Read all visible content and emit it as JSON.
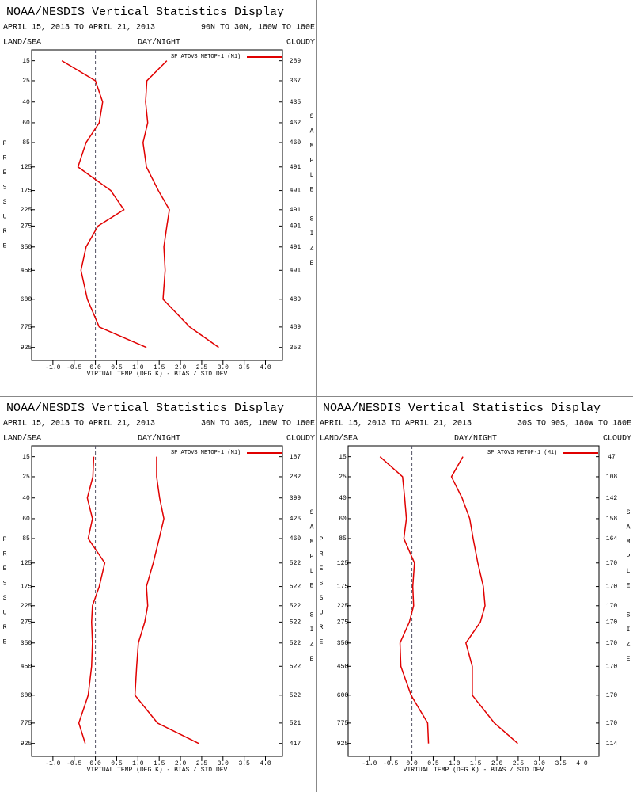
{
  "chart_data": [
    {
      "type": "line",
      "title": "NOAA/NESDIS Vertical Statistics Display",
      "subtitle": "APRIL 15, 2013 TO APRIL 21, 2013",
      "region": "90N TO 30N, 180W TO 180E",
      "land_sea": "LAND/SEA",
      "day_night": "DAY/NIGHT",
      "cloud": "CLOUDY",
      "xlabel": "VIRTUAL TEMP (DEG K) - BIAS / STD DEV",
      "ylabel": "PRESSURE",
      "y2label": "SAMPLE SIZE",
      "y": [
        15,
        25,
        40,
        60,
        85,
        125,
        175,
        225,
        275,
        350,
        450,
        600,
        775,
        925
      ],
      "ylim": [
        11,
        1030
      ],
      "sample_size": [
        289,
        367,
        435,
        462,
        460,
        491,
        491,
        491,
        491,
        491,
        491,
        489,
        489,
        352
      ],
      "xlim": [
        -1.5,
        4.4
      ],
      "xticks": [
        {
          "value": -1,
          "label": "-1.0"
        },
        {
          "value": -0.5,
          "label": "-0.5"
        },
        {
          "value": 0,
          "label": "0.0"
        },
        {
          "value": 0.5,
          "label": "0.5"
        },
        {
          "value": 1,
          "label": "1.0"
        },
        {
          "value": 1.5,
          "label": "1.5"
        },
        {
          "value": 2,
          "label": "2.0"
        },
        {
          "value": 2.5,
          "label": "2.5"
        },
        {
          "value": 3,
          "label": "3.0"
        },
        {
          "value": 3.5,
          "label": "3.5"
        },
        {
          "value": 4,
          "label": "4.0"
        }
      ],
      "series": [
        {
          "name": "SP ATOVS METOP-1 (M1)",
          "color": "#e00000",
          "values": [
            -0.79,
            0.0,
            0.17,
            0.09,
            -0.22,
            -0.41,
            0.36,
            0.67,
            0.06,
            -0.22,
            -0.34,
            -0.19,
            0.09,
            1.2
          ],
          "std_dev": [
            1.68,
            1.21,
            1.18,
            1.23,
            1.12,
            1.2,
            1.48,
            1.74,
            1.68,
            1.61,
            1.64,
            1.59,
            2.22,
            2.9
          ]
        }
      ]
    },
    {
      "type": "line",
      "title": "NOAA/NESDIS Vertical Statistics Display",
      "subtitle": "APRIL 15, 2013 TO APRIL 21, 2013",
      "region": "30N TO 30S, 180W TO 180E",
      "land_sea": "LAND/SEA",
      "day_night": "DAY/NIGHT",
      "cloud": "CLOUDY",
      "xlabel": "VIRTUAL TEMP (DEG K) - BIAS / STD DEV",
      "ylabel": "PRESSURE",
      "y2label": "SAMPLE SIZE",
      "y": [
        15,
        25,
        40,
        60,
        85,
        125,
        175,
        225,
        275,
        350,
        450,
        600,
        775,
        925
      ],
      "ylim": [
        11,
        1030
      ],
      "sample_size": [
        187,
        282,
        399,
        426,
        460,
        522,
        522,
        522,
        522,
        522,
        522,
        522,
        521,
        417
      ],
      "xlim": [
        -1.5,
        4.4
      ],
      "xticks": [
        {
          "value": -1,
          "label": "-1.0"
        },
        {
          "value": -0.5,
          "label": "-0.5"
        },
        {
          "value": 0,
          "label": "0.0"
        },
        {
          "value": 0.5,
          "label": "0.5"
        },
        {
          "value": 1,
          "label": "1.0"
        },
        {
          "value": 1.5,
          "label": "1.5"
        },
        {
          "value": 2,
          "label": "2.0"
        },
        {
          "value": 2.5,
          "label": "2.5"
        },
        {
          "value": 3,
          "label": "3.0"
        },
        {
          "value": 3.5,
          "label": "3.5"
        },
        {
          "value": 4,
          "label": "4.0"
        }
      ],
      "series": [
        {
          "name": "SP ATOVS METOP-1 (M1)",
          "color": "#e00000",
          "values": [
            -0.04,
            -0.06,
            -0.19,
            -0.07,
            -0.17,
            0.22,
            0.09,
            -0.07,
            -0.09,
            -0.07,
            -0.09,
            -0.17,
            -0.39,
            -0.24
          ],
          "std_dev": [
            1.44,
            1.44,
            1.51,
            1.61,
            1.5,
            1.36,
            1.2,
            1.23,
            1.16,
            1.01,
            0.97,
            0.93,
            1.46,
            2.43
          ]
        }
      ]
    },
    {
      "type": "line",
      "title": "NOAA/NESDIS Vertical Statistics Display",
      "subtitle": "APRIL 15, 2013 TO APRIL 21, 2013",
      "region": "30S TO 90S, 180W TO 180E",
      "land_sea": "LAND/SEA",
      "day_night": "DAY/NIGHT",
      "cloud": "CLOUDY",
      "xlabel": "VIRTUAL TEMP (DEG K) - BIAS / STD DEV",
      "ylabel": "PRESSURE",
      "y2label": "SAMPLE SIZE",
      "y": [
        15,
        25,
        40,
        60,
        85,
        125,
        175,
        225,
        275,
        350,
        450,
        600,
        775,
        925
      ],
      "ylim": [
        11,
        1030
      ],
      "sample_size": [
        47,
        108,
        142,
        158,
        164,
        170,
        170,
        170,
        170,
        170,
        170,
        170,
        170,
        114
      ],
      "xlim": [
        -1.5,
        4.4
      ],
      "xticks": [
        {
          "value": -1,
          "label": "-1.0"
        },
        {
          "value": -0.5,
          "label": "-0.5"
        },
        {
          "value": 0,
          "label": "0.0"
        },
        {
          "value": 0.5,
          "label": "0.5"
        },
        {
          "value": 1,
          "label": "1.0"
        },
        {
          "value": 1.5,
          "label": "1.5"
        },
        {
          "value": 2,
          "label": "2.0"
        },
        {
          "value": 2.5,
          "label": "2.5"
        },
        {
          "value": 3,
          "label": "3.0"
        },
        {
          "value": 3.5,
          "label": "3.5"
        },
        {
          "value": 4,
          "label": "4.0"
        }
      ],
      "series": [
        {
          "name": "SP ATOVS METOP-1 (M1)",
          "color": "#e00000",
          "values": [
            -0.75,
            -0.22,
            -0.17,
            -0.13,
            -0.19,
            0.06,
            0.02,
            0.04,
            -0.06,
            -0.28,
            -0.26,
            -0.02,
            0.37,
            0.39
          ],
          "std_dev": [
            1.2,
            0.93,
            1.18,
            1.36,
            1.44,
            1.55,
            1.68,
            1.72,
            1.61,
            1.27,
            1.42,
            1.42,
            1.94,
            2.49
          ]
        }
      ]
    }
  ]
}
